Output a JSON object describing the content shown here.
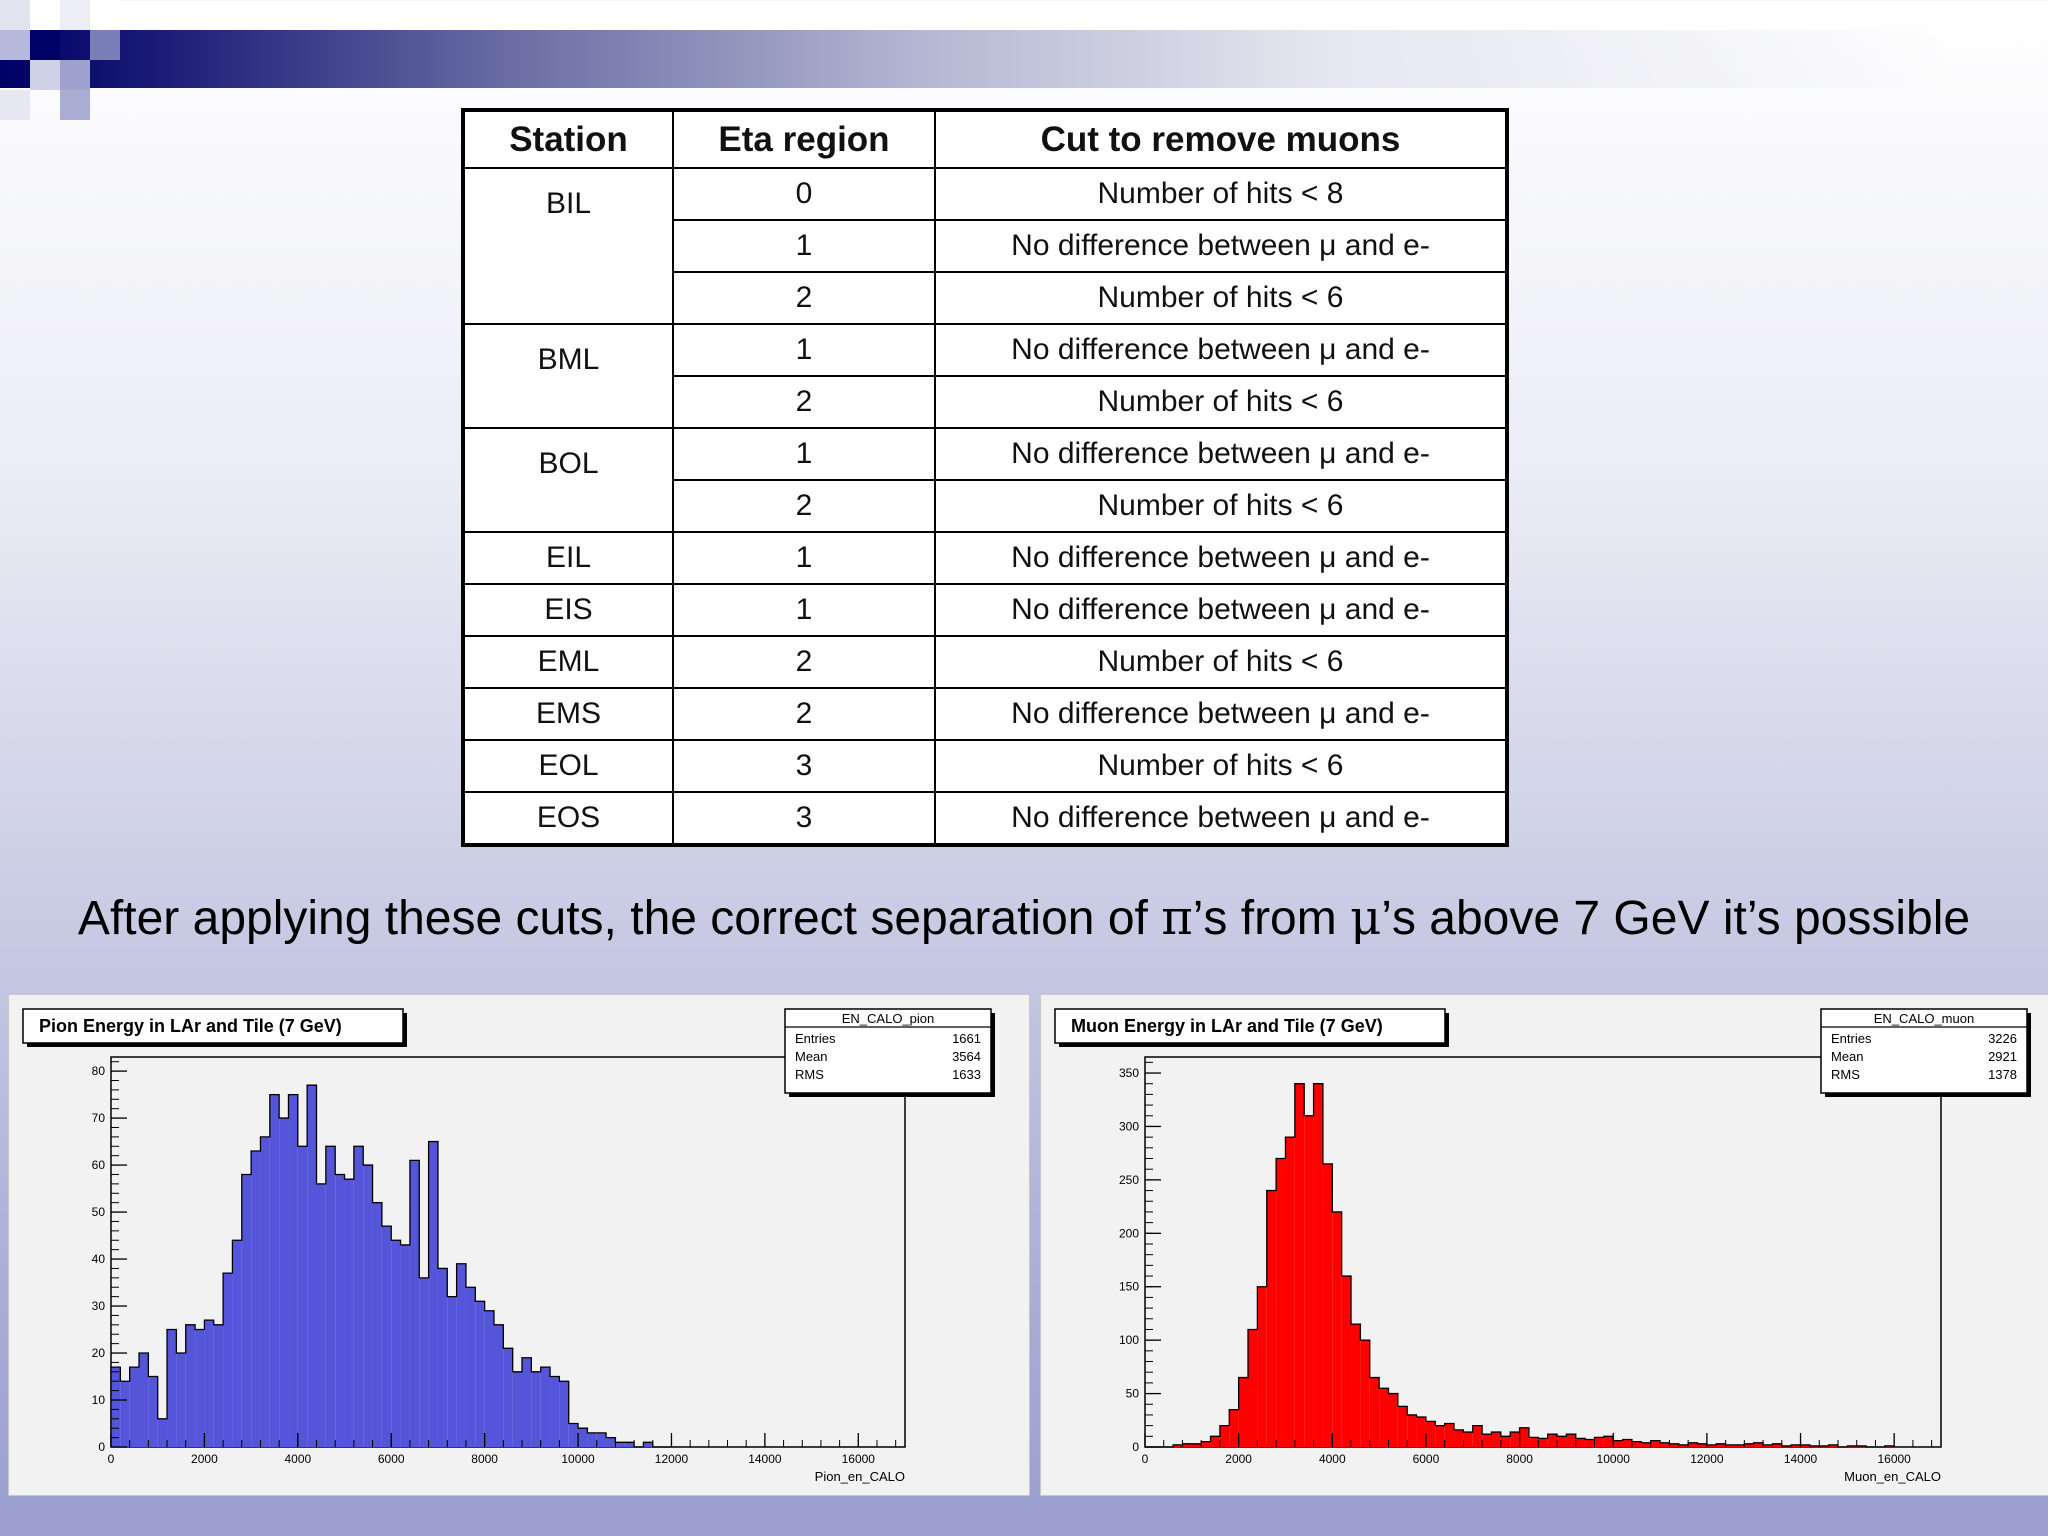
{
  "table": {
    "headers": [
      "Station",
      "Eta region",
      "Cut to remove muons"
    ],
    "groups": [
      {
        "station": "BIL",
        "rows": [
          [
            "0",
            "Number of hits < 8"
          ],
          [
            "1",
            "No difference between μ and e-"
          ],
          [
            "2",
            "Number of hits < 6"
          ]
        ]
      },
      {
        "station": "BML",
        "rows": [
          [
            "1",
            "No difference between μ and e-"
          ],
          [
            "2",
            "Number of hits < 6"
          ]
        ]
      },
      {
        "station": "BOL",
        "rows": [
          [
            "1",
            "No difference between μ and e-"
          ],
          [
            "2",
            "Number of hits < 6"
          ]
        ]
      },
      {
        "station": "EIL",
        "rows": [
          [
            "1",
            "No difference between μ and e-"
          ]
        ]
      },
      {
        "station": "EIS",
        "rows": [
          [
            "1",
            "No difference between μ and e-"
          ]
        ]
      },
      {
        "station": "EML",
        "rows": [
          [
            "2",
            "Number of hits < 6"
          ]
        ]
      },
      {
        "station": "EMS",
        "rows": [
          [
            "2",
            "No difference between μ and e-"
          ]
        ]
      },
      {
        "station": "EOL",
        "rows": [
          [
            "3",
            "Number of hits < 6"
          ]
        ]
      },
      {
        "station": "EOS",
        "rows": [
          [
            "3",
            "No difference between μ and e-"
          ]
        ]
      }
    ]
  },
  "caption": {
    "before_pi": "After applying these cuts, the correct separation of ",
    "pi": "π",
    "middle": "’s from ",
    "mu": "μ",
    "after_mu": "’s above 7 GeV it’s possible"
  },
  "chart_data": [
    {
      "type": "bar",
      "title": "Pion Energy in LAr and Tile (7 GeV)",
      "xlabel": "Pion_en_CALO",
      "ylabel": "",
      "xlim": [
        0,
        17000
      ],
      "ylim": [
        0,
        83
      ],
      "xticks": [
        0,
        2000,
        4000,
        6000,
        8000,
        10000,
        12000,
        14000,
        16000
      ],
      "yticks": [
        0,
        10,
        20,
        30,
        40,
        50,
        60,
        70,
        80
      ],
      "bin_width": 200,
      "color": "#5555d9",
      "stats": {
        "name": "EN_CALO_pion",
        "rows": [
          [
            "Entries",
            "1661"
          ],
          [
            "Mean",
            "3564"
          ],
          [
            "RMS",
            "1633"
          ]
        ]
      },
      "values": [
        17,
        14,
        17,
        20,
        15,
        6,
        25,
        20,
        26,
        25,
        27,
        26,
        37,
        44,
        58,
        63,
        66,
        75,
        70,
        75,
        64,
        77,
        56,
        64,
        58,
        57,
        64,
        60,
        52,
        47,
        44,
        43,
        61,
        36,
        65,
        38,
        32,
        39,
        34,
        31,
        29,
        26,
        21,
        16,
        19,
        16,
        17,
        15,
        14,
        5,
        4,
        3,
        3,
        2,
        1,
        1,
        0,
        1,
        0,
        0
      ]
    },
    {
      "type": "bar",
      "title": "Muon Energy in LAr and Tile (7 GeV)",
      "xlabel": "Muon_en_CALO",
      "ylabel": "",
      "xlim": [
        0,
        17000
      ],
      "ylim": [
        0,
        365
      ],
      "xticks": [
        0,
        2000,
        4000,
        6000,
        8000,
        10000,
        12000,
        14000,
        16000
      ],
      "yticks": [
        0,
        50,
        100,
        150,
        200,
        250,
        300,
        350
      ],
      "bin_width": 200,
      "color": "#ff0000",
      "stats": {
        "name": "EN_CALO_muon",
        "rows": [
          [
            "Entries",
            "3226"
          ],
          [
            "Mean",
            "2921"
          ],
          [
            "RMS",
            "1378"
          ]
        ]
      },
      "values": [
        0,
        0,
        0,
        2,
        3,
        3,
        5,
        10,
        20,
        35,
        65,
        110,
        150,
        240,
        270,
        290,
        340,
        310,
        340,
        265,
        220,
        160,
        115,
        100,
        65,
        55,
        50,
        38,
        30,
        28,
        24,
        20,
        22,
        16,
        14,
        20,
        12,
        14,
        10,
        14,
        18,
        9,
        8,
        12,
        10,
        12,
        8,
        7,
        9,
        10,
        6,
        7,
        5,
        4,
        6,
        4,
        3,
        2,
        4,
        3,
        2,
        3,
        2,
        2,
        3,
        4,
        2,
        3,
        1,
        2,
        2,
        1,
        1,
        2,
        0,
        1,
        1,
        0,
        0,
        1
      ]
    }
  ]
}
